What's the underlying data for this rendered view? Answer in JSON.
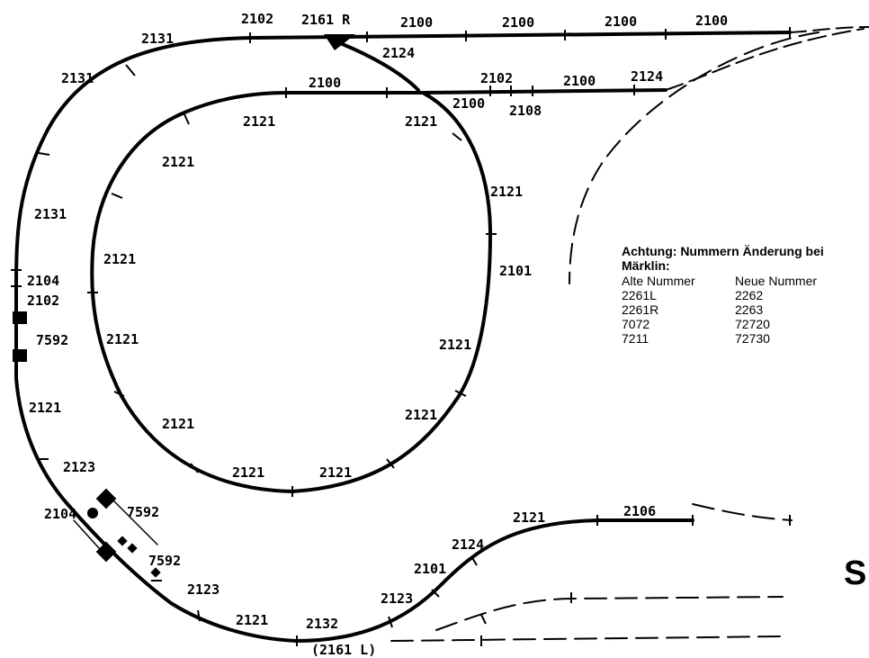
{
  "track_labels": [
    {
      "id": "l_2131_top",
      "text": "2131"
    },
    {
      "id": "l_2102_top",
      "text": "2102"
    },
    {
      "id": "l_2161R",
      "text": "2161 R"
    },
    {
      "id": "l_2100_a",
      "text": "2100"
    },
    {
      "id": "l_2100_b",
      "text": "2100"
    },
    {
      "id": "l_2100_c",
      "text": "2100"
    },
    {
      "id": "l_2100_d",
      "text": "2100"
    },
    {
      "id": "l_2124_top",
      "text": "2124"
    },
    {
      "id": "l_2131_left1",
      "text": "2131"
    },
    {
      "id": "l_2100_inner",
      "text": "2100"
    },
    {
      "id": "l_2102_mid",
      "text": "2102"
    },
    {
      "id": "l_2100_mid2",
      "text": "2100"
    },
    {
      "id": "l_2124_mid",
      "text": "2124"
    },
    {
      "id": "l_2100_small",
      "text": "2100"
    },
    {
      "id": "l_2108",
      "text": "2108"
    },
    {
      "id": "l_2121_a",
      "text": "2121"
    },
    {
      "id": "l_2121_b",
      "text": "2121"
    },
    {
      "id": "l_2121_c",
      "text": "2121"
    },
    {
      "id": "l_2121_d",
      "text": "2121"
    },
    {
      "id": "l_2131_left2",
      "text": "2131"
    },
    {
      "id": "l_2121_e",
      "text": "2121"
    },
    {
      "id": "l_2101_right",
      "text": "2101"
    },
    {
      "id": "l_2104_left",
      "text": "2104"
    },
    {
      "id": "l_2102_left",
      "text": "2102"
    },
    {
      "id": "l_7592_left",
      "text": "7592"
    },
    {
      "id": "l_2121_f",
      "text": "2121"
    },
    {
      "id": "l_2121_g",
      "text": "2121"
    },
    {
      "id": "l_2121_h",
      "text": "2121"
    },
    {
      "id": "l_2121_i",
      "text": "2121"
    },
    {
      "id": "l_2121_j",
      "text": "2121"
    },
    {
      "id": "l_2121_k",
      "text": "2121"
    },
    {
      "id": "l_2121_l",
      "text": "2121"
    },
    {
      "id": "l_2123_a",
      "text": "2123"
    },
    {
      "id": "l_2104_b",
      "text": "2104"
    },
    {
      "id": "l_7592_a",
      "text": "7592"
    },
    {
      "id": "l_7592_b",
      "text": "7592"
    },
    {
      "id": "l_2123_b",
      "text": "2123"
    },
    {
      "id": "l_2121_m",
      "text": "2121"
    },
    {
      "id": "l_2132",
      "text": "2132"
    },
    {
      "id": "l_2161L",
      "text": "(2161 L)"
    },
    {
      "id": "l_2123_c",
      "text": "2123"
    },
    {
      "id": "l_2101_b",
      "text": "2101"
    },
    {
      "id": "l_2124_b",
      "text": "2124"
    },
    {
      "id": "l_2121_n",
      "text": "2121"
    },
    {
      "id": "l_2106",
      "text": "2106"
    }
  ],
  "note": {
    "heading": "Achtung: Nummern Änderung bei",
    "brand": "Märklin:",
    "col_old": "Alte Nummer",
    "col_new": "Neue Nummer",
    "rows": [
      {
        "old": "2261L",
        "new": "2262"
      },
      {
        "old": "2261R",
        "new": "2263"
      },
      {
        "old": "7072",
        "new": "72720"
      },
      {
        "old": "7211",
        "new": "72730"
      }
    ]
  },
  "edge_letter": "S"
}
